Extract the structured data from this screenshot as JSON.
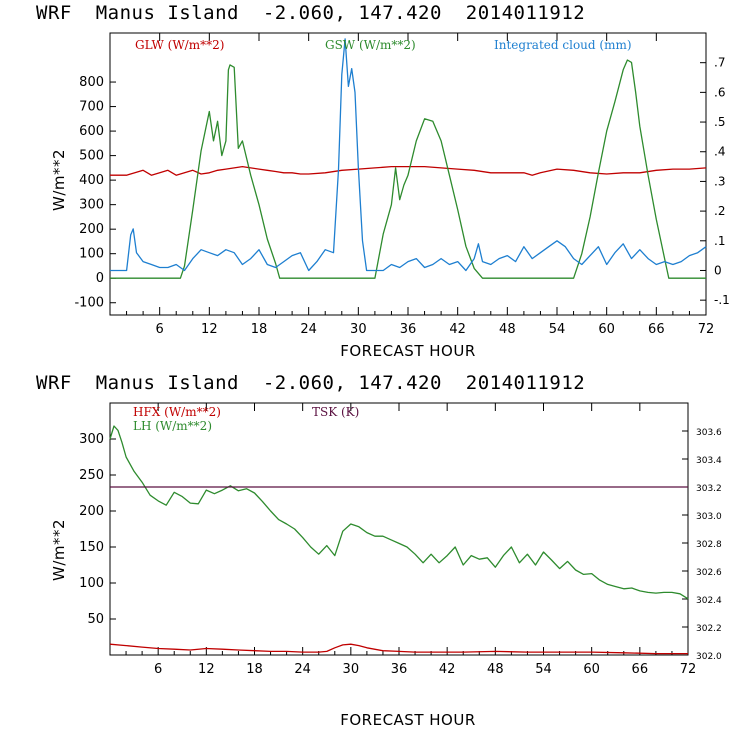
{
  "chart_data": [
    {
      "type": "line",
      "title": "WRF  Manus Island  -2.060, 147.420  2014011912",
      "xlabel": "FORECAST HOUR",
      "ylabel": "W/m**2",
      "xlim": [
        0,
        72
      ],
      "ylim": [
        -150,
        1000
      ],
      "y2lim": [
        -0.15,
        0.8
      ],
      "xticks": [
        "6",
        "12",
        "18",
        "24",
        "30",
        "36",
        "42",
        "48",
        "54",
        "60",
        "66",
        "72"
      ],
      "yticks": [
        "-100",
        "0",
        "100",
        "200",
        "300",
        "400",
        "500",
        "600",
        "700",
        "800"
      ],
      "y2ticks": [
        "-.1",
        "0",
        ".1",
        ".2",
        ".3",
        ".4",
        ".5",
        ".6",
        ".7"
      ],
      "grid": false,
      "legend_position": "top",
      "series": [
        {
          "name": "GLW (W/m**2)",
          "color": "#c00000",
          "axis": "left",
          "x": [
            0,
            2,
            3,
            4,
            5,
            6,
            7,
            8,
            9,
            10,
            11,
            12,
            13,
            14,
            15,
            16,
            17,
            18,
            19,
            20,
            21,
            22,
            23,
            24,
            26,
            28,
            30,
            32,
            34,
            36,
            38,
            40,
            42,
            44,
            46,
            48,
            50,
            51,
            52,
            54,
            56,
            58,
            60,
            62,
            64,
            66,
            68,
            70,
            72
          ],
          "values": [
            420,
            420,
            430,
            440,
            420,
            430,
            440,
            420,
            430,
            440,
            425,
            430,
            440,
            445,
            450,
            455,
            450,
            445,
            440,
            435,
            430,
            430,
            425,
            425,
            430,
            440,
            445,
            450,
            455,
            455,
            455,
            450,
            445,
            440,
            430,
            430,
            430,
            420,
            430,
            445,
            440,
            430,
            425,
            430,
            430,
            440,
            445,
            445,
            450
          ]
        },
        {
          "name": "GSW (W/m**2)",
          "color": "#2e8b2e",
          "axis": "left",
          "x": [
            0,
            8.5,
            9,
            10,
            11,
            12,
            12.5,
            13,
            13.5,
            14,
            14.3,
            14.5,
            15,
            15.5,
            16,
            17,
            18,
            19,
            20,
            20.5,
            32,
            33,
            34,
            34.5,
            35,
            35.5,
            36,
            37,
            38,
            39,
            40,
            41,
            42,
            43,
            44,
            45,
            56,
            57,
            58,
            59,
            60,
            61,
            62,
            62.5,
            63,
            63.5,
            64,
            65,
            66,
            67,
            67.5,
            72
          ],
          "values": [
            0,
            0,
            50,
            280,
            520,
            680,
            560,
            640,
            500,
            560,
            850,
            870,
            860,
            530,
            560,
            420,
            300,
            160,
            60,
            0,
            0,
            180,
            300,
            450,
            320,
            380,
            420,
            560,
            650,
            640,
            560,
            420,
            280,
            130,
            40,
            0,
            0,
            100,
            250,
            430,
            600,
            720,
            850,
            890,
            880,
            760,
            620,
            420,
            240,
            80,
            0,
            0
          ]
        },
        {
          "name": "Integrated cloud (mm)",
          "color": "#1e7fd0",
          "axis": "right",
          "x": [
            0,
            2,
            2.5,
            2.8,
            3.2,
            4,
            5,
            6,
            7,
            8,
            9,
            10,
            11,
            12,
            13,
            14,
            15,
            16,
            17,
            18,
            19,
            20,
            21,
            22,
            23,
            24,
            25,
            26,
            27,
            27.6,
            28,
            28.4,
            28.8,
            29.2,
            29.6,
            30,
            30.5,
            31,
            31.2,
            32,
            33,
            34,
            35,
            36,
            37,
            38,
            39,
            40,
            41,
            42,
            43,
            44,
            44.5,
            45,
            46,
            47,
            48,
            49,
            50,
            51,
            52,
            53,
            54,
            55,
            56,
            57,
            58,
            59,
            60,
            61,
            62,
            63,
            64,
            65,
            66,
            67,
            68,
            69,
            70,
            71,
            72
          ],
          "values": [
            0.0,
            0.0,
            0.12,
            0.14,
            0.06,
            0.03,
            0.02,
            0.01,
            0.01,
            0.02,
            0.0,
            0.04,
            0.07,
            0.06,
            0.05,
            0.07,
            0.06,
            0.02,
            0.04,
            0.07,
            0.02,
            0.01,
            0.03,
            0.05,
            0.06,
            0.0,
            0.03,
            0.07,
            0.06,
            0.34,
            0.66,
            0.78,
            0.62,
            0.68,
            0.6,
            0.35,
            0.1,
            0.0,
            0.0,
            0.0,
            0.0,
            0.02,
            0.01,
            0.03,
            0.04,
            0.01,
            0.02,
            0.04,
            0.02,
            0.03,
            0.0,
            0.04,
            0.09,
            0.03,
            0.02,
            0.04,
            0.05,
            0.03,
            0.08,
            0.04,
            0.06,
            0.08,
            0.1,
            0.08,
            0.04,
            0.02,
            0.05,
            0.08,
            0.02,
            0.06,
            0.09,
            0.04,
            0.07,
            0.04,
            0.02,
            0.03,
            0.02,
            0.03,
            0.05,
            0.06,
            0.08
          ]
        }
      ]
    },
    {
      "type": "line",
      "title": "WRF  Manus Island  -2.060, 147.420  2014011912",
      "xlabel": "FORECAST HOUR",
      "ylabel": "W/m**2",
      "xlim": [
        0,
        72
      ],
      "ylim": [
        0,
        350
      ],
      "y2lim": [
        302.0,
        303.8
      ],
      "xticks": [
        "6",
        "12",
        "18",
        "24",
        "30",
        "36",
        "42",
        "48",
        "54",
        "60",
        "66",
        "72"
      ],
      "yticks": [
        "50",
        "100",
        "150",
        "200",
        "250",
        "300"
      ],
      "y2ticks": [
        "302.0",
        "302.2",
        "302.4",
        "302.6",
        "302.8",
        "303.0",
        "303.2",
        "303.4",
        "303.6"
      ],
      "grid": false,
      "legend_position": "top",
      "series": [
        {
          "name": "HFX (W/m**2)",
          "color": "#c00000",
          "axis": "left",
          "x": [
            0,
            2,
            4,
            6,
            8,
            10,
            12,
            14,
            16,
            18,
            20,
            22,
            24,
            26,
            27,
            28,
            29,
            30,
            31,
            32,
            34,
            36,
            38,
            40,
            44,
            48,
            52,
            56,
            60,
            64,
            68,
            72
          ],
          "values": [
            15,
            13,
            11,
            9,
            8,
            7,
            9,
            8,
            7,
            6,
            5,
            5,
            4,
            4,
            5,
            10,
            14,
            15,
            13,
            10,
            6,
            5,
            4,
            4,
            4,
            5,
            4,
            4,
            4,
            3,
            2,
            2
          ]
        },
        {
          "name": "LH (W/m**2)",
          "color": "#2e8b2e",
          "axis": "left",
          "x": [
            0,
            0.5,
            1,
            1.5,
            2,
            3,
            4,
            5,
            6,
            7,
            8,
            9,
            10,
            11,
            12,
            13,
            14,
            15,
            16,
            17,
            18,
            19,
            20,
            21,
            22,
            23,
            24,
            25,
            26,
            27,
            28,
            29,
            30,
            31,
            32,
            33,
            34,
            35,
            36,
            37,
            38,
            39,
            40,
            41,
            42,
            43,
            44,
            45,
            46,
            47,
            48,
            49,
            50,
            51,
            52,
            53,
            54,
            55,
            56,
            57,
            58,
            59,
            60,
            61,
            62,
            63,
            64,
            65,
            66,
            67,
            68,
            69,
            70,
            71,
            72
          ],
          "values": [
            300,
            318,
            312,
            295,
            275,
            255,
            240,
            222,
            214,
            208,
            226,
            220,
            211,
            210,
            229,
            224,
            229,
            235,
            228,
            231,
            225,
            213,
            200,
            188,
            182,
            175,
            163,
            150,
            140,
            152,
            138,
            172,
            182,
            178,
            170,
            165,
            165,
            160,
            155,
            150,
            140,
            128,
            140,
            128,
            138,
            150,
            125,
            138,
            133,
            135,
            122,
            138,
            150,
            128,
            140,
            125,
            143,
            132,
            120,
            130,
            118,
            112,
            113,
            104,
            98,
            95,
            92,
            93,
            89,
            87,
            86,
            87,
            87,
            85,
            78
          ]
        },
        {
          "name": "TSK (K)",
          "color": "#5a1040",
          "axis": "right",
          "x": [
            0,
            72
          ],
          "values": [
            303.2,
            303.2
          ]
        }
      ]
    }
  ]
}
